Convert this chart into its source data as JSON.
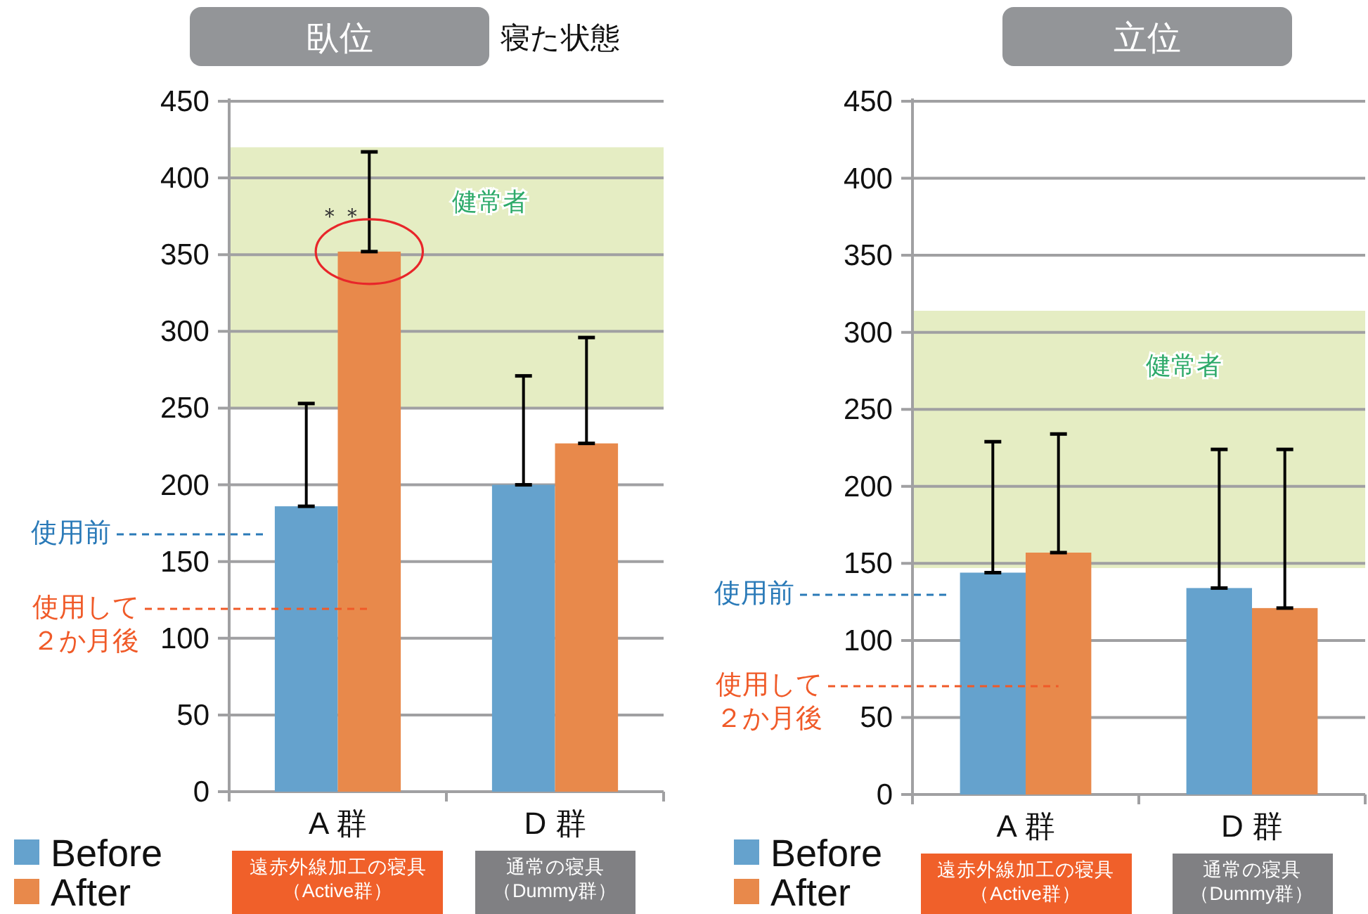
{
  "chart_data": [
    {
      "type": "bar",
      "title": "臥位",
      "categories": [
        "A 群",
        "D 群"
      ],
      "ylim": [
        0,
        450
      ],
      "yticks": [
        0,
        50,
        100,
        150,
        200,
        250,
        300,
        350,
        400,
        450
      ],
      "grid": "y",
      "legend": "bottom left",
      "series": [
        {
          "name": "Before",
          "color": "#65a2cd",
          "values": [
            186,
            200
          ],
          "errors": [
            [
              186,
              253
            ],
            [
              200,
              271
            ]
          ]
        },
        {
          "name": "After",
          "color": "#e8894b",
          "values": [
            352,
            227
          ],
          "errors": [
            [
              352,
              417
            ],
            [
              227,
              296
            ]
          ]
        }
      ],
      "bands": [
        {
          "axis": "y",
          "from": 250,
          "to": 420,
          "label": "健常者",
          "color": "#e5edc3"
        }
      ],
      "annotations": [
        "寝た状態",
        "＊＊",
        "使用前",
        "使用して２か月後",
        "遠赤外線加工の寝具（Active群）",
        "通常の寝具（Dummy群）"
      ]
    },
    {
      "type": "bar",
      "title": "立位",
      "categories": [
        "A 群",
        "D 群"
      ],
      "ylim": [
        0,
        450
      ],
      "yticks": [
        0,
        50,
        100,
        150,
        200,
        250,
        300,
        350,
        400,
        450
      ],
      "grid": "y",
      "legend": "bottom left",
      "series": [
        {
          "name": "Before",
          "color": "#65a2cd",
          "values": [
            144,
            134
          ],
          "errors": [
            [
              144,
              229
            ],
            [
              134,
              224
            ]
          ]
        },
        {
          "name": "After",
          "color": "#e8894b",
          "values": [
            157,
            121
          ],
          "errors": [
            [
              157,
              234
            ],
            [
              121,
              224
            ]
          ]
        }
      ],
      "bands": [
        {
          "axis": "y",
          "from": 147,
          "to": 314,
          "label": "健常者",
          "color": "#e5edc3"
        }
      ],
      "annotations": [
        "使用前",
        "使用して２か月後",
        "遠赤外線加工の寝具（Active群）",
        "通常の寝具（Dummy群）"
      ]
    }
  ]
}
